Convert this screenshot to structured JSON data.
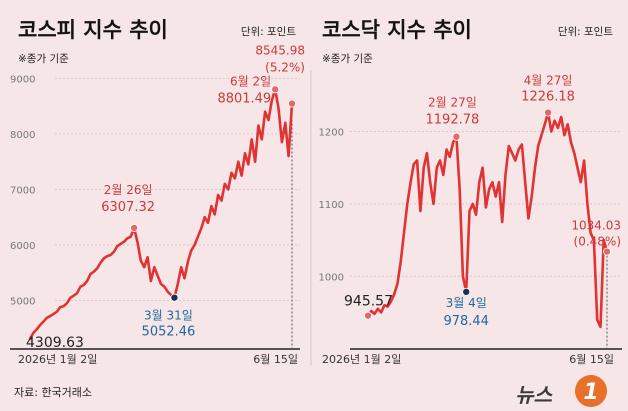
{
  "header": {
    "left_title": "코스피 지수 추이",
    "left_unit": "단위: 포인트",
    "left_note": "※종가 기준",
    "right_title": "코스닥 지수 추이",
    "right_unit": "단위: 포인트",
    "right_note": "※종가 기준"
  },
  "footer": {
    "source": "자료: 한국거래소",
    "logo_text": "뉴스",
    "logo_mark": "1"
  },
  "chart_data": [
    {
      "type": "line",
      "title": "코스피 지수 추이",
      "unit": "포인트",
      "note": "※종가 기준",
      "color": "#e03333",
      "ylim": [
        4200,
        9150
      ],
      "yticks": [
        5000,
        6000,
        7000,
        8000,
        9000
      ],
      "tick_labels": [
        "5000",
        "6000",
        "7000",
        "8000",
        "9000"
      ],
      "x_start_label": "2026년 1월 2일",
      "x_end_label": "6월 15일",
      "values": [
        4309.63,
        4420,
        4480,
        4560,
        4620,
        4690,
        4720,
        4760,
        4800,
        4880,
        4900,
        4950,
        5050,
        5090,
        5130,
        5250,
        5280,
        5350,
        5480,
        5520,
        5580,
        5680,
        5760,
        5800,
        5820,
        5880,
        5980,
        6020,
        6060,
        6120,
        6150,
        6307.32,
        6050,
        5720,
        5600,
        5780,
        5350,
        5600,
        5450,
        5300,
        5250,
        5160,
        5100,
        5052.46,
        5300,
        5600,
        5400,
        5700,
        5900,
        6000,
        6150,
        6300,
        6500,
        6400,
        6700,
        6550,
        6900,
        6800,
        7100,
        7000,
        7300,
        7200,
        7500,
        7250,
        7650,
        7450,
        7900,
        7500,
        8150,
        7900,
        8400,
        8250,
        8600,
        8801.49,
        8450,
        7850,
        8200,
        7600,
        8545.98
      ],
      "annotations": [
        {
          "index": 0,
          "lines": [
            "4309.63"
          ],
          "style": "dark",
          "marker": "none",
          "anchor": "start",
          "dx": -4,
          "dy": [
            8
          ]
        },
        {
          "index": 31,
          "lines": [
            "2월 26일",
            "6307.32"
          ],
          "style": "red",
          "marker": "red",
          "anchor": "middle",
          "dx": -6,
          "dy": [
            -34,
            -17
          ]
        },
        {
          "index": 43,
          "lines": [
            "3월 31일",
            "5052.46"
          ],
          "style": "blue",
          "marker": "blue",
          "anchor": "middle",
          "dx": -6,
          "dy": [
            22,
            38
          ]
        },
        {
          "index": 73,
          "lines": [
            "6월 2일",
            "8801.49"
          ],
          "style": "red",
          "marker": "red",
          "anchor": "end",
          "dx": -4,
          "dy": [
            -4,
            13
          ]
        },
        {
          "index": 78,
          "lines": [
            "8545.98",
            "(5.2%)"
          ],
          "style": "red",
          "marker": "red",
          "anchor": "end",
          "dx": 13,
          "dy": [
            -49,
            -32
          ]
        }
      ]
    },
    {
      "type": "line",
      "title": "코스닥 지수 추이",
      "unit": "포인트",
      "note": "※종가 기준",
      "color": "#e03333",
      "ylim": [
        905,
        1285
      ],
      "yticks": [
        1000,
        1100,
        1200
      ],
      "tick_labels": [
        "1000",
        "1100",
        "1200"
      ],
      "x_start_label": "2026년 1월 2일",
      "x_end_label": "6월 15일",
      "values": [
        945.57,
        952,
        948,
        955,
        950,
        960,
        958,
        965,
        975,
        990,
        1020,
        1060,
        1100,
        1130,
        1155,
        1160,
        1090,
        1150,
        1170,
        1130,
        1100,
        1150,
        1160,
        1140,
        1175,
        1165,
        1185,
        1192.78,
        1120,
        1000,
        978.44,
        1090,
        1100,
        1085,
        1130,
        1150,
        1095,
        1120,
        1130,
        1110,
        1130,
        1075,
        1140,
        1180,
        1170,
        1160,
        1175,
        1182,
        1130,
        1080,
        1110,
        1150,
        1180,
        1195,
        1210,
        1226.18,
        1200,
        1215,
        1205,
        1220,
        1195,
        1210,
        1185,
        1170,
        1150,
        1130,
        1160,
        1100,
        1060,
        1050,
        940,
        930,
        1050,
        1034.03
      ],
      "annotations": [
        {
          "index": 0,
          "lines": [
            "945.57"
          ],
          "style": "dark",
          "marker": "red",
          "anchor": "start",
          "dx": -24,
          "dy": [
            -10
          ]
        },
        {
          "index": 27,
          "lines": [
            "2월 27일",
            "1192.78"
          ],
          "style": "red",
          "marker": "red",
          "anchor": "middle",
          "dx": -4,
          "dy": [
            -30,
            -13
          ]
        },
        {
          "index": 30,
          "lines": [
            "3월 4일",
            "978.44"
          ],
          "style": "blue",
          "marker": "blue",
          "anchor": "middle",
          "dx": 0,
          "dy": [
            15,
            33
          ]
        },
        {
          "index": 55,
          "lines": [
            "4월 27일",
            "1226.18"
          ],
          "style": "red",
          "marker": "red",
          "anchor": "middle",
          "dx": 0,
          "dy": [
            -28,
            -12
          ]
        },
        {
          "index": 73,
          "lines": [
            "1034.03",
            "(0.48%)"
          ],
          "style": "red",
          "marker": "red",
          "anchor": "end",
          "dx": 14,
          "dy": [
            -22,
            -6
          ]
        }
      ]
    }
  ]
}
